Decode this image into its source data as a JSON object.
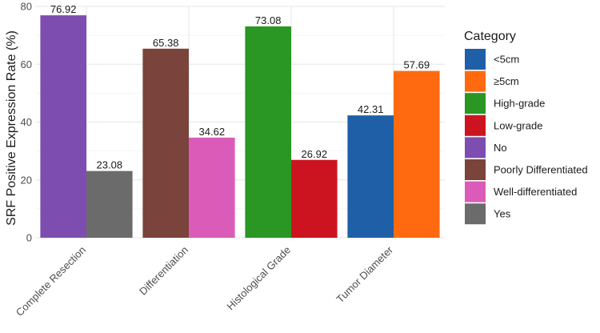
{
  "chart_data": {
    "type": "bar",
    "ylabel": "SRF Positive Expression Rate (%)",
    "xlabel": "",
    "ylim": [
      0,
      80
    ],
    "yticks": [
      0,
      20,
      40,
      60,
      80
    ],
    "grid": true,
    "legend_title": "Category",
    "legend_position": "right",
    "groups": [
      {
        "name": "Complete Resection",
        "bars": [
          {
            "category": "No",
            "value": 76.92,
            "label": "76.92"
          },
          {
            "category": "Yes",
            "value": 23.08,
            "label": "23.08"
          }
        ]
      },
      {
        "name": "Differentiation",
        "bars": [
          {
            "category": "Poorly Differentiated",
            "value": 65.38,
            "label": "65.38"
          },
          {
            "category": "Well-differentiated",
            "value": 34.62,
            "label": "34.62"
          }
        ]
      },
      {
        "name": "Histological Grade",
        "bars": [
          {
            "category": "High-grade",
            "value": 73.08,
            "label": "73.08"
          },
          {
            "category": "Low-grade",
            "value": 26.92,
            "label": "26.92"
          }
        ]
      },
      {
        "name": "Tumor Diameter",
        "bars": [
          {
            "category": "<5cm",
            "value": 42.31,
            "label": "42.31"
          },
          {
            "category": "≥5cm",
            "value": 57.69,
            "label": "57.69"
          }
        ]
      }
    ],
    "legend": [
      {
        "label": "<5cm",
        "color": "#1f5fa8"
      },
      {
        "label": "≥5cm",
        "color": "#ff6a10"
      },
      {
        "label": "High-grade",
        "color": "#2a9624"
      },
      {
        "label": "Low-grade",
        "color": "#cc1420"
      },
      {
        "label": "No",
        "color": "#7e4db0"
      },
      {
        "label": "Poorly Differentiated",
        "color": "#7a433b"
      },
      {
        "label": "Well-differentiated",
        "color": "#db5cb8"
      },
      {
        "label": "Yes",
        "color": "#6b6b6b"
      }
    ]
  }
}
